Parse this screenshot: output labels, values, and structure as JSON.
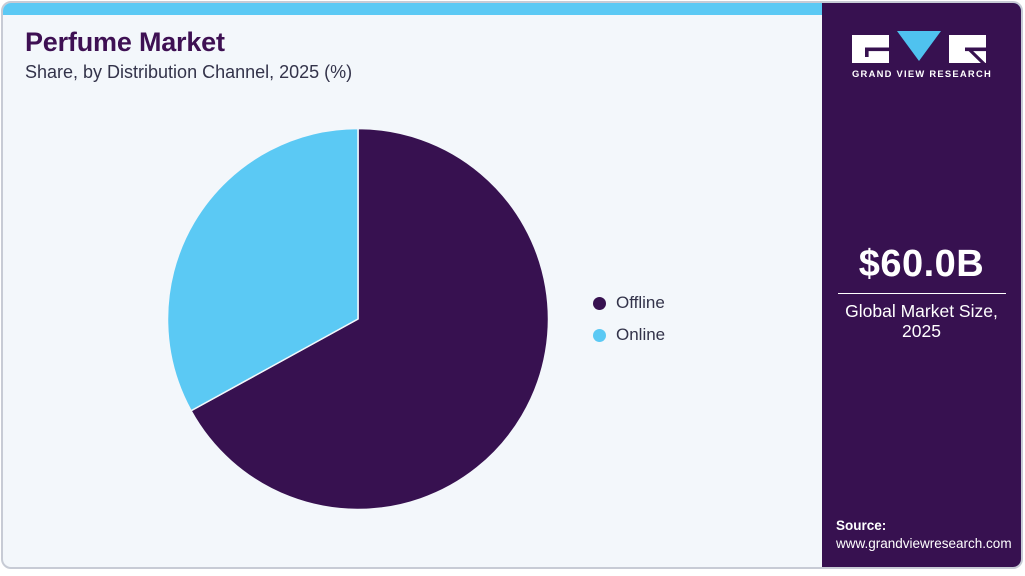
{
  "header": {
    "title": "Perfume Market",
    "subtitle": "Share, by Distribution Channel, 2025 (%)"
  },
  "chart_data": {
    "type": "pie",
    "title": "Perfume Market Share, by Distribution Channel, 2025 (%)",
    "labels": [
      "Offline",
      "Online"
    ],
    "values": [
      67,
      33
    ],
    "unit": "%",
    "colors": [
      "#371150",
      "#5BC9F4"
    ],
    "legend_position": "right",
    "start_angle_deg": 0,
    "direction": "clockwise",
    "donut": false
  },
  "sidebar": {
    "logo_brand": "GRAND VIEW RESEARCH",
    "market_size": {
      "value": "$60.0B",
      "label_line1": "Global Market Size,",
      "label_line2": "2025"
    },
    "source": {
      "label": "Source:",
      "url": "www.grandviewresearch.com"
    }
  },
  "theme": {
    "accent_blue": "#5BC9F4",
    "dark_purple": "#371150",
    "title_color": "#3E1053",
    "card_background": "#F3F7FB",
    "text_color": "#33334A"
  }
}
